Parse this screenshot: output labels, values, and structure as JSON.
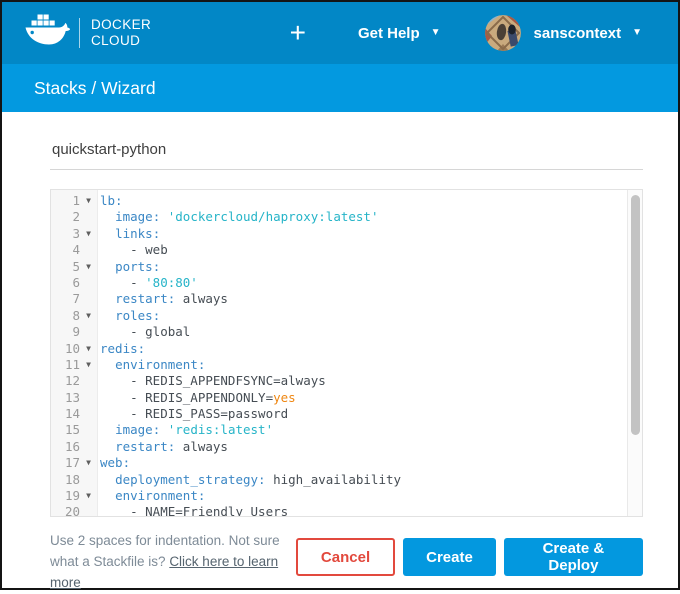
{
  "header": {
    "brand_line1": "DOCKER",
    "brand_line2": "CLOUD",
    "plus": "+",
    "get_help_label": "Get Help",
    "username": "sanscontext"
  },
  "breadcrumb": {
    "label": "Stacks / Wizard"
  },
  "form": {
    "stack_name_value": "quickstart-python"
  },
  "editor": {
    "lines": [
      {
        "num": "1",
        "fold": true,
        "segments": [
          {
            "text": "lb:",
            "type": "key"
          }
        ]
      },
      {
        "num": "2",
        "fold": false,
        "segments": [
          {
            "text": "  ",
            "type": "plain"
          },
          {
            "text": "image:",
            "type": "key"
          },
          {
            "text": " ",
            "type": "plain"
          },
          {
            "text": "'dockercloud/haproxy:latest'",
            "type": "str"
          }
        ]
      },
      {
        "num": "3",
        "fold": true,
        "segments": [
          {
            "text": "  ",
            "type": "plain"
          },
          {
            "text": "links:",
            "type": "key"
          }
        ]
      },
      {
        "num": "4",
        "fold": false,
        "segments": [
          {
            "text": "    - web",
            "type": "plain"
          }
        ]
      },
      {
        "num": "5",
        "fold": true,
        "segments": [
          {
            "text": "  ",
            "type": "plain"
          },
          {
            "text": "ports:",
            "type": "key"
          }
        ]
      },
      {
        "num": "6",
        "fold": false,
        "segments": [
          {
            "text": "    - ",
            "type": "plain"
          },
          {
            "text": "'80:80'",
            "type": "str"
          }
        ]
      },
      {
        "num": "7",
        "fold": false,
        "segments": [
          {
            "text": "  ",
            "type": "plain"
          },
          {
            "text": "restart:",
            "type": "key"
          },
          {
            "text": " always",
            "type": "plain"
          }
        ]
      },
      {
        "num": "8",
        "fold": true,
        "segments": [
          {
            "text": "  ",
            "type": "plain"
          },
          {
            "text": "roles:",
            "type": "key"
          }
        ]
      },
      {
        "num": "9",
        "fold": false,
        "segments": [
          {
            "text": "    - global",
            "type": "plain"
          }
        ]
      },
      {
        "num": "10",
        "fold": true,
        "segments": [
          {
            "text": "redis:",
            "type": "key"
          }
        ]
      },
      {
        "num": "11",
        "fold": true,
        "segments": [
          {
            "text": "  ",
            "type": "plain"
          },
          {
            "text": "environment:",
            "type": "key"
          }
        ]
      },
      {
        "num": "12",
        "fold": false,
        "segments": [
          {
            "text": "    - REDIS_APPENDFSYNC=always",
            "type": "plain"
          }
        ]
      },
      {
        "num": "13",
        "fold": false,
        "segments": [
          {
            "text": "    - REDIS_APPENDONLY=",
            "type": "plain"
          },
          {
            "text": "yes",
            "type": "atom"
          }
        ]
      },
      {
        "num": "14",
        "fold": false,
        "segments": [
          {
            "text": "    - REDIS_PASS=password",
            "type": "plain"
          }
        ]
      },
      {
        "num": "15",
        "fold": false,
        "segments": [
          {
            "text": "  ",
            "type": "plain"
          },
          {
            "text": "image:",
            "type": "key"
          },
          {
            "text": " ",
            "type": "plain"
          },
          {
            "text": "'redis:latest'",
            "type": "str"
          }
        ]
      },
      {
        "num": "16",
        "fold": false,
        "segments": [
          {
            "text": "  ",
            "type": "plain"
          },
          {
            "text": "restart:",
            "type": "key"
          },
          {
            "text": " always",
            "type": "plain"
          }
        ]
      },
      {
        "num": "17",
        "fold": true,
        "segments": [
          {
            "text": "web:",
            "type": "key"
          }
        ]
      },
      {
        "num": "18",
        "fold": false,
        "segments": [
          {
            "text": "  ",
            "type": "plain"
          },
          {
            "text": "deployment_strategy:",
            "type": "key"
          },
          {
            "text": " high_availability",
            "type": "plain"
          }
        ]
      },
      {
        "num": "19",
        "fold": true,
        "segments": [
          {
            "text": "  ",
            "type": "plain"
          },
          {
            "text": "environment:",
            "type": "key"
          }
        ]
      },
      {
        "num": "20",
        "fold": false,
        "segments": [
          {
            "text": "    - NAME=Friendly Users",
            "type": "plain"
          }
        ]
      }
    ],
    "fold_glyph": "▼"
  },
  "footer": {
    "hint_text": "Use 2 spaces for indentation. Not sure what a Stackfile is? ",
    "hint_link_label": "Click here to learn more",
    "cancel_label": "Cancel",
    "create_label": "Create",
    "create_deploy_label": "Create & Deploy"
  },
  "colors": {
    "header_bg": "#0287c6",
    "breadcrumb_bg": "#0399e0",
    "button_blue": "#0398df",
    "cancel_red": "#e2493d",
    "code_key": "#3b87c5",
    "code_string": "#26b4c8",
    "code_plain": "#464d54",
    "code_atom": "#ef8712"
  }
}
